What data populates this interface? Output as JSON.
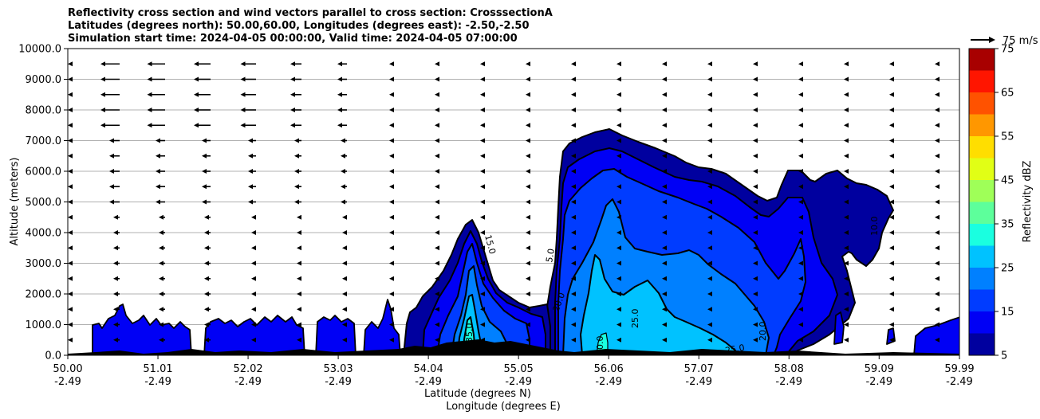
{
  "chart_data": {
    "type": "contour",
    "title": {
      "line1": "Reflectivity cross section and wind vectors parallel to cross section: CrosssectionA",
      "line2": "Latitudes (degrees north): 50.00,60.00, Longitudes (degrees east): -2.50,-2.50",
      "line3": "Simulation start time: 2024-04-05 00:00:00, Valid time: 2024-04-05 07:00:00"
    },
    "ylabel": "Altitude (meters)",
    "xlabel_lat": "Latitude (degrees N)",
    "xlabel_lon": "Longitude (degrees E)",
    "ylim": [
      0,
      10000
    ],
    "xlim": [
      50.0,
      59.99
    ],
    "y_ticks": [
      "0.0",
      "1000.0",
      "2000.0",
      "3000.0",
      "4000.0",
      "5000.0",
      "6000.0",
      "7000.0",
      "8000.0",
      "9000.0",
      "10000.0"
    ],
    "y_tick_values": [
      0,
      1000,
      2000,
      3000,
      4000,
      5000,
      6000,
      7000,
      8000,
      9000,
      10000
    ],
    "x_ticks_lat": [
      "50.00",
      "51.01",
      "52.02",
      "53.03",
      "54.04",
      "55.05",
      "56.06",
      "57.07",
      "58.08",
      "59.09",
      "59.99"
    ],
    "x_tick_values": [
      50.0,
      51.01,
      52.02,
      53.03,
      54.04,
      55.05,
      56.06,
      57.07,
      58.08,
      59.09,
      59.99
    ],
    "x_ticks_lon": [
      "-2.49",
      "-2.49",
      "-2.49",
      "-2.49",
      "-2.49",
      "-2.49",
      "-2.49",
      "-2.49",
      "-2.49",
      "-2.49",
      "-2.49"
    ],
    "grid": "horizontal",
    "colorbar": {
      "label": "Reflectivity dBZ",
      "levels": [
        5,
        10,
        15,
        20,
        25,
        30,
        35,
        40,
        45,
        50,
        55,
        60,
        65,
        70,
        75
      ],
      "tick_labels": [
        "5",
        "15",
        "25",
        "35",
        "45",
        "55",
        "65",
        "75"
      ],
      "colors": [
        "#00009f",
        "#0000f5",
        "#003cff",
        "#0080ff",
        "#00c2ff",
        "#1affe0",
        "#5dff9b",
        "#9fff58",
        "#e1ff15",
        "#ffde00",
        "#ff9700",
        "#ff5200",
        "#ff1500",
        "#a80000"
      ]
    },
    "wind_reference": "75 m/s",
    "contour_labels": [
      "5.0",
      "10.0",
      "15.0",
      "20.0",
      "25.0",
      "30.0",
      "35.0"
    ]
  }
}
